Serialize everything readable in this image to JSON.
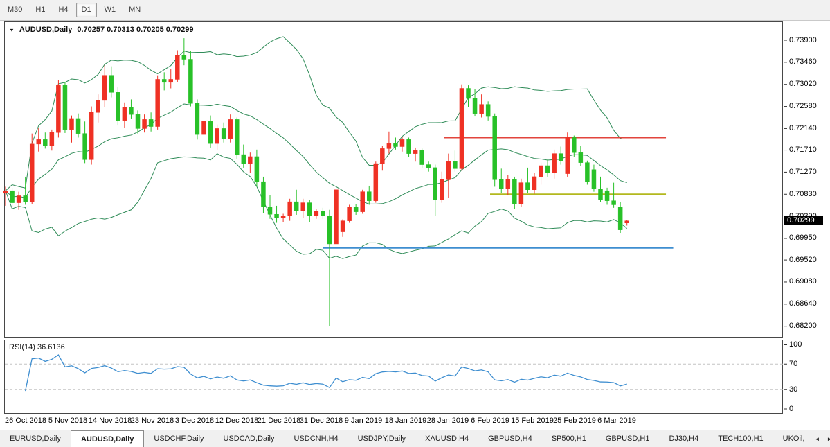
{
  "toolbar": {
    "timeframes": [
      "M30",
      "H1",
      "H4",
      "D1",
      "W1",
      "MN"
    ],
    "active_timeframe": "D1"
  },
  "chart_header": {
    "symbol": "AUDUSD,Daily",
    "ohlc": "0.70257 0.70313 0.70205 0.70299"
  },
  "icons": {
    "symbol_dropdown": "▼",
    "tab_scroll_left": "◄",
    "tab_scroll_right": "►"
  },
  "price_axis": {
    "ticks": [
      "0.73900",
      "0.73460",
      "0.73020",
      "0.72580",
      "0.72140",
      "0.71710",
      "0.71270",
      "0.70830",
      "0.70390",
      "0.69950",
      "0.69520",
      "0.69080",
      "0.68640",
      "0.68200"
    ],
    "current_price": "0.70299"
  },
  "rsi_panel": {
    "label": "RSI(14) 36.6136",
    "axis": [
      "100",
      "70",
      "30",
      "0"
    ]
  },
  "tabs": {
    "items": [
      "EURUSD,Daily",
      "AUDUSD,Daily",
      "USDCHF,Daily",
      "USDCAD,Daily",
      "USDCNH,H4",
      "USDJPY,Daily",
      "XAUUSD,H4",
      "GBPUSD,H4",
      "SP500,H1",
      "GBPUSD,H1",
      "DJ30,H4",
      "TECH100,H1",
      "UKOil,"
    ],
    "active": "AUDUSD,Daily"
  },
  "colors": {
    "candle_up": "#ef3124",
    "candle_down": "#28c128",
    "bollinger": "#2e8b57",
    "rsi_line": "#3e8ed0",
    "rsi_levels_dash": "#c3c3c3",
    "hline_red": "#e2453c",
    "hline_olive": "#b3b81e",
    "hline_blue": "#3e8ed0",
    "price_flag_bg": "#000000",
    "price_flag_text": "#ffffff"
  },
  "chart_data": {
    "type": "candlestick",
    "symbol": "AUDUSD",
    "timeframe": "Daily",
    "title": "AUDUSD,Daily",
    "ohlc_current": {
      "open": 0.70257,
      "high": 0.70313,
      "low": 0.70205,
      "close": 0.70299
    },
    "ylim": [
      0.6798,
      0.7412
    ],
    "grid": false,
    "x_ticks": [
      "26 Oct 2018",
      "5 Nov 2018",
      "14 Nov 2018",
      "23 Nov 2018",
      "3 Dec 2018",
      "12 Dec 2018",
      "21 Dec 2018",
      "31 Dec 2018",
      "9 Jan 2019",
      "18 Jan 2019",
      "28 Jan 2019",
      "6 Feb 2019",
      "15 Feb 2019",
      "25 Feb 2019",
      "6 Mar 2019"
    ],
    "candles": [
      [
        0.7085,
        0.7098,
        0.706,
        0.709
      ],
      [
        0.709,
        0.7096,
        0.7058,
        0.7066
      ],
      [
        0.7066,
        0.7088,
        0.7052,
        0.708
      ],
      [
        0.708,
        0.7118,
        0.7062,
        0.7068
      ],
      [
        0.7068,
        0.7204,
        0.7063,
        0.7183
      ],
      [
        0.7183,
        0.7215,
        0.7168,
        0.7192
      ],
      [
        0.7192,
        0.7206,
        0.7174,
        0.718
      ],
      [
        0.718,
        0.7212,
        0.717,
        0.7206
      ],
      [
        0.7206,
        0.731,
        0.7196,
        0.73
      ],
      [
        0.73,
        0.7306,
        0.7205,
        0.7212
      ],
      [
        0.7212,
        0.724,
        0.7186,
        0.7234
      ],
      [
        0.7234,
        0.7244,
        0.7196,
        0.7204
      ],
      [
        0.7204,
        0.7228,
        0.7145,
        0.7152
      ],
      [
        0.7152,
        0.7258,
        0.7142,
        0.7246
      ],
      [
        0.7246,
        0.7282,
        0.7226,
        0.727
      ],
      [
        0.727,
        0.734,
        0.7256,
        0.732
      ],
      [
        0.732,
        0.7338,
        0.7276,
        0.7286
      ],
      [
        0.7286,
        0.7296,
        0.722,
        0.723
      ],
      [
        0.723,
        0.7266,
        0.7216,
        0.7256
      ],
      [
        0.7256,
        0.7272,
        0.7234,
        0.7242
      ],
      [
        0.7242,
        0.725,
        0.7204,
        0.7214
      ],
      [
        0.7214,
        0.7242,
        0.7206,
        0.7232
      ],
      [
        0.7232,
        0.7246,
        0.7208,
        0.7218
      ],
      [
        0.7218,
        0.732,
        0.7212,
        0.7312
      ],
      [
        0.7312,
        0.7326,
        0.729,
        0.7306
      ],
      [
        0.7306,
        0.7332,
        0.7294,
        0.7312
      ],
      [
        0.7312,
        0.737,
        0.7306,
        0.736
      ],
      [
        0.736,
        0.7394,
        0.734,
        0.7352
      ],
      [
        0.7352,
        0.7368,
        0.7258,
        0.7264
      ],
      [
        0.7264,
        0.7272,
        0.7192,
        0.7202
      ],
      [
        0.7202,
        0.7246,
        0.719,
        0.7228
      ],
      [
        0.7228,
        0.724,
        0.7176,
        0.7184
      ],
      [
        0.7184,
        0.7222,
        0.7172,
        0.7214
      ],
      [
        0.7214,
        0.7226,
        0.7186,
        0.7194
      ],
      [
        0.7194,
        0.7242,
        0.7186,
        0.7232
      ],
      [
        0.7232,
        0.7236,
        0.7154,
        0.7162
      ],
      [
        0.7162,
        0.7182,
        0.7136,
        0.7144
      ],
      [
        0.7144,
        0.7166,
        0.7126,
        0.7158
      ],
      [
        0.7158,
        0.7172,
        0.7098,
        0.7108
      ],
      [
        0.7108,
        0.7118,
        0.7046,
        0.7058
      ],
      [
        0.7058,
        0.7082,
        0.7034,
        0.7043
      ],
      [
        0.7043,
        0.706,
        0.7026,
        0.7036
      ],
      [
        0.7036,
        0.7044,
        0.7028,
        0.704
      ],
      [
        0.704,
        0.7074,
        0.703,
        0.7068
      ],
      [
        0.7068,
        0.7092,
        0.7042,
        0.705
      ],
      [
        0.705,
        0.7074,
        0.7036,
        0.7066
      ],
      [
        0.7066,
        0.7072,
        0.7028,
        0.704
      ],
      [
        0.704,
        0.7054,
        0.7034,
        0.7049
      ],
      [
        0.7049,
        0.7056,
        0.7034,
        0.704
      ],
      [
        0.704,
        0.7052,
        0.682,
        0.6984
      ],
      [
        0.6984,
        0.7098,
        0.6974,
        0.7092
      ],
      [
        0.7008,
        0.7033,
        0.6998,
        0.703
      ],
      [
        0.703,
        0.7062,
        0.7026,
        0.7058
      ],
      [
        0.7058,
        0.7064,
        0.7042,
        0.7048
      ],
      [
        0.7048,
        0.7092,
        0.7044,
        0.7088
      ],
      [
        0.7088,
        0.71,
        0.7062,
        0.707
      ],
      [
        0.707,
        0.7148,
        0.7066,
        0.7144
      ],
      [
        0.7144,
        0.718,
        0.713,
        0.7174
      ],
      [
        0.7174,
        0.7208,
        0.7164,
        0.7184
      ],
      [
        0.7184,
        0.7196,
        0.7172,
        0.7178
      ],
      [
        0.7178,
        0.7198,
        0.7168,
        0.7192
      ],
      [
        0.7192,
        0.7196,
        0.7158,
        0.7164
      ],
      [
        0.7164,
        0.7176,
        0.7148,
        0.717
      ],
      [
        0.717,
        0.7174,
        0.7136,
        0.7142
      ],
      [
        0.7142,
        0.7148,
        0.7128,
        0.7136
      ],
      [
        0.7136,
        0.7142,
        0.704,
        0.7072
      ],
      [
        0.7072,
        0.7128,
        0.7066,
        0.7112
      ],
      [
        0.7112,
        0.7164,
        0.7076,
        0.7148
      ],
      [
        0.7148,
        0.717,
        0.7128,
        0.7134
      ],
      [
        0.7134,
        0.7302,
        0.713,
        0.7294
      ],
      [
        0.7294,
        0.73,
        0.7256,
        0.7274
      ],
      [
        0.7274,
        0.7292,
        0.7238,
        0.7244
      ],
      [
        0.7244,
        0.7282,
        0.7236,
        0.7262
      ],
      [
        0.7262,
        0.7268,
        0.723,
        0.7238
      ],
      [
        0.7238,
        0.7244,
        0.7098,
        0.7112
      ],
      [
        0.7112,
        0.7134,
        0.7086,
        0.7094
      ],
      [
        0.7094,
        0.7122,
        0.7082,
        0.7112
      ],
      [
        0.7112,
        0.7118,
        0.7054,
        0.7064
      ],
      [
        0.7064,
        0.7114,
        0.7058,
        0.7106
      ],
      [
        0.7106,
        0.7136,
        0.7086,
        0.7092
      ],
      [
        0.7092,
        0.7126,
        0.7084,
        0.7118
      ],
      [
        0.7118,
        0.7146,
        0.7102,
        0.714
      ],
      [
        0.714,
        0.7152,
        0.7118,
        0.7126
      ],
      [
        0.7126,
        0.7172,
        0.7114,
        0.7164
      ],
      [
        0.7164,
        0.7178,
        0.7142,
        0.715
      ],
      [
        0.7124,
        0.7206,
        0.7118,
        0.7196
      ],
      [
        0.7196,
        0.72,
        0.7158,
        0.7166
      ],
      [
        0.7166,
        0.718,
        0.714,
        0.7146
      ],
      [
        0.7146,
        0.715,
        0.7102,
        0.7108
      ],
      [
        0.7132,
        0.7142,
        0.7088,
        0.7094
      ],
      [
        0.7094,
        0.7118,
        0.7068,
        0.7072
      ],
      [
        0.709,
        0.7096,
        0.7062,
        0.707
      ],
      [
        0.707,
        0.7106,
        0.7056,
        0.7062
      ],
      [
        0.7058,
        0.7068,
        0.7006,
        0.7012
      ],
      [
        0.70257,
        0.70313,
        0.70205,
        0.70299
      ]
    ],
    "overlays": {
      "bollinger": {
        "name": "Bands",
        "period": 20,
        "deviations": 2
      },
      "hlines": [
        {
          "price": 0.7196,
          "bar_start": 66.3,
          "bar_end": 99.9,
          "color_key": "hline_red"
        },
        {
          "price": 0.7083,
          "bar_start": 73.3,
          "bar_end": 99.9,
          "color_key": "hline_olive"
        },
        {
          "price": 0.6976,
          "bar_start": 48.0,
          "bar_end": 101.0,
          "color_key": "hline_blue"
        }
      ]
    },
    "indicator": {
      "name": "RSI",
      "period": 14,
      "current_value": 36.6136,
      "range": [
        0,
        100
      ],
      "levels": [
        70,
        30
      ]
    }
  }
}
